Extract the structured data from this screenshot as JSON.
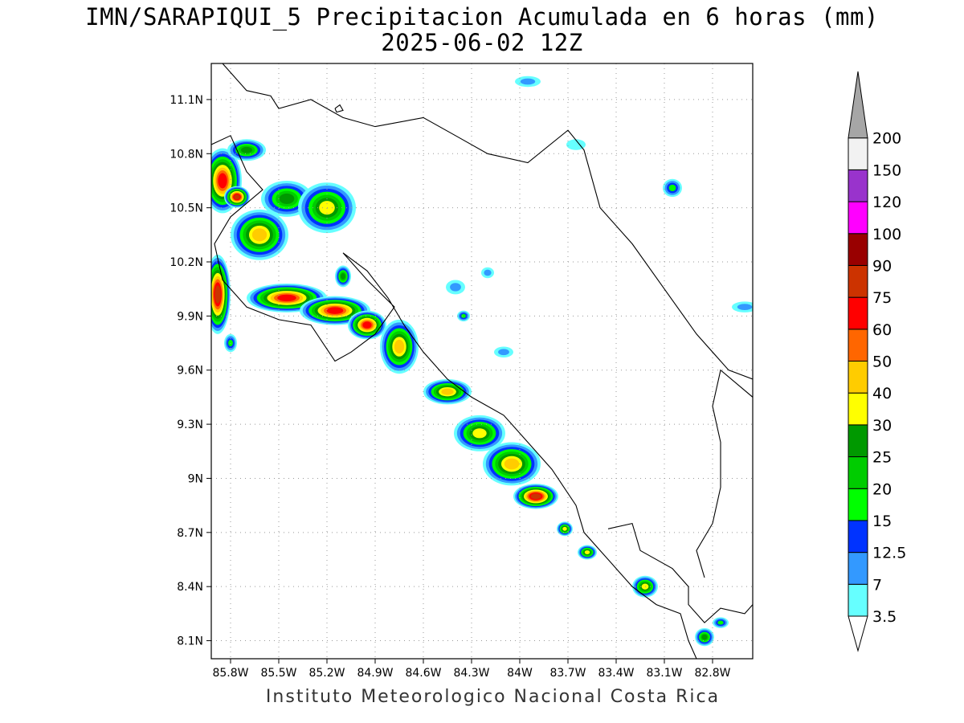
{
  "title": "IMN/SARAPIQUI_5 Precipitacion Acumulada en 6 horas (mm)",
  "subtitle": "2025-06-02 12Z",
  "footer": "Instituto Meteorologico Nacional Costa Rica",
  "map": {
    "lon_range": [
      -85.92,
      -82.55
    ],
    "lat_range": [
      8.0,
      11.3
    ],
    "lat_ticks": [
      {
        "value": 8.1,
        "label": "8.1N"
      },
      {
        "value": 8.4,
        "label": "8.4N"
      },
      {
        "value": 8.7,
        "label": "8.7N"
      },
      {
        "value": 9.0,
        "label": "9N"
      },
      {
        "value": 9.3,
        "label": "9.3N"
      },
      {
        "value": 9.6,
        "label": "9.6N"
      },
      {
        "value": 9.9,
        "label": "9.9N"
      },
      {
        "value": 10.2,
        "label": "10.2N"
      },
      {
        "value": 10.5,
        "label": "10.5N"
      },
      {
        "value": 10.8,
        "label": "10.8N"
      },
      {
        "value": 11.1,
        "label": "11.1N"
      }
    ],
    "lon_ticks": [
      {
        "value": -85.8,
        "label": "85.8W"
      },
      {
        "value": -85.5,
        "label": "85.5W"
      },
      {
        "value": -85.2,
        "label": "85.2W"
      },
      {
        "value": -84.9,
        "label": "84.9W"
      },
      {
        "value": -84.6,
        "label": "84.6W"
      },
      {
        "value": -84.3,
        "label": "84.3W"
      },
      {
        "value": -84.0,
        "label": "84W"
      },
      {
        "value": -83.7,
        "label": "83.7W"
      },
      {
        "value": -83.4,
        "label": "83.4W"
      },
      {
        "value": -83.1,
        "label": "83.1W"
      },
      {
        "value": -82.8,
        "label": "82.8W"
      }
    ],
    "coastline": [
      [
        [
          -85.85,
          11.3
        ],
        [
          -85.7,
          11.15
        ],
        [
          -85.55,
          11.12
        ],
        [
          -85.5,
          11.05
        ],
        [
          -85.3,
          11.1
        ],
        [
          -85.1,
          11.0
        ],
        [
          -84.9,
          10.95
        ],
        [
          -84.6,
          11.0
        ],
        [
          -84.4,
          10.9
        ],
        [
          -84.2,
          10.8
        ],
        [
          -83.95,
          10.75
        ],
        [
          -83.7,
          10.93
        ],
        [
          -83.6,
          10.82
        ],
        [
          -83.5,
          10.5
        ],
        [
          -83.3,
          10.3
        ],
        [
          -83.1,
          10.05
        ],
        [
          -82.9,
          9.8
        ],
        [
          -82.7,
          9.6
        ],
        [
          -82.55,
          9.55
        ]
      ],
      [
        [
          -85.92,
          10.85
        ],
        [
          -85.8,
          10.9
        ],
        [
          -85.7,
          10.7
        ],
        [
          -85.6,
          10.6
        ],
        [
          -85.8,
          10.45
        ],
        [
          -85.9,
          10.3
        ],
        [
          -85.85,
          10.1
        ],
        [
          -85.7,
          9.95
        ],
        [
          -85.5,
          9.88
        ],
        [
          -85.3,
          9.85
        ],
        [
          -85.15,
          9.65
        ],
        [
          -85.05,
          9.7
        ],
        [
          -84.9,
          9.8
        ],
        [
          -84.78,
          9.95
        ],
        [
          -84.95,
          10.1
        ],
        [
          -85.1,
          10.25
        ],
        [
          -84.95,
          10.15
        ],
        [
          -84.82,
          10.0
        ],
        [
          -84.72,
          9.85
        ],
        [
          -84.6,
          9.7
        ],
        [
          -84.45,
          9.55
        ],
        [
          -84.3,
          9.45
        ],
        [
          -84.1,
          9.35
        ],
        [
          -83.95,
          9.2
        ],
        [
          -83.8,
          9.05
        ],
        [
          -83.65,
          8.85
        ],
        [
          -83.6,
          8.7
        ],
        [
          -83.5,
          8.6
        ],
        [
          -83.4,
          8.5
        ],
        [
          -83.3,
          8.4
        ],
        [
          -83.15,
          8.3
        ],
        [
          -83.0,
          8.25
        ],
        [
          -82.95,
          8.1
        ],
        [
          -82.9,
          8.0
        ]
      ],
      [
        [
          -83.45,
          8.72
        ],
        [
          -83.3,
          8.75
        ],
        [
          -83.25,
          8.6
        ],
        [
          -83.05,
          8.5
        ],
        [
          -82.95,
          8.4
        ],
        [
          -82.95,
          8.3
        ],
        [
          -82.85,
          8.2
        ],
        [
          -82.75,
          8.28
        ],
        [
          -82.6,
          8.25
        ],
        [
          -82.55,
          8.3
        ]
      ],
      [
        [
          -82.55,
          9.45
        ],
        [
          -82.75,
          9.6
        ],
        [
          -82.8,
          9.4
        ],
        [
          -82.75,
          9.2
        ],
        [
          -82.75,
          8.95
        ],
        [
          -82.8,
          8.75
        ],
        [
          -82.9,
          8.6
        ],
        [
          -82.85,
          8.45
        ]
      ]
    ],
    "islands": [
      [
        [
          -85.15,
          11.05
        ],
        [
          -85.12,
          11.07
        ],
        [
          -85.1,
          11.04
        ],
        [
          -85.14,
          11.03
        ],
        [
          -85.15,
          11.05
        ]
      ]
    ],
    "precip_cells": [
      {
        "lon": -85.85,
        "lat": 10.65,
        "rx": 0.12,
        "ry": 0.18,
        "peak": 60
      },
      {
        "lon": -85.76,
        "lat": 10.56,
        "rx": 0.08,
        "ry": 0.06,
        "peak": 75
      },
      {
        "lon": -85.7,
        "lat": 10.82,
        "rx": 0.12,
        "ry": 0.06,
        "peak": 25
      },
      {
        "lon": -85.62,
        "lat": 10.35,
        "rx": 0.18,
        "ry": 0.14,
        "peak": 40
      },
      {
        "lon": -85.45,
        "lat": 10.55,
        "rx": 0.16,
        "ry": 0.1,
        "peak": 25
      },
      {
        "lon": -85.2,
        "lat": 10.5,
        "rx": 0.18,
        "ry": 0.14,
        "peak": 35
      },
      {
        "lon": -85.88,
        "lat": 10.02,
        "rx": 0.08,
        "ry": 0.22,
        "peak": 75
      },
      {
        "lon": -85.45,
        "lat": 10.0,
        "rx": 0.25,
        "ry": 0.08,
        "peak": 60
      },
      {
        "lon": -85.15,
        "lat": 9.93,
        "rx": 0.22,
        "ry": 0.08,
        "peak": 60
      },
      {
        "lon": -84.95,
        "lat": 9.85,
        "rx": 0.12,
        "ry": 0.08,
        "peak": 60
      },
      {
        "lon": -85.1,
        "lat": 10.12,
        "rx": 0.05,
        "ry": 0.06,
        "peak": 25
      },
      {
        "lon": -84.75,
        "lat": 9.73,
        "rx": 0.12,
        "ry": 0.15,
        "peak": 40
      },
      {
        "lon": -84.45,
        "lat": 9.48,
        "rx": 0.15,
        "ry": 0.07,
        "peak": 40
      },
      {
        "lon": -84.25,
        "lat": 9.25,
        "rx": 0.16,
        "ry": 0.1,
        "peak": 30
      },
      {
        "lon": -84.05,
        "lat": 9.08,
        "rx": 0.18,
        "ry": 0.12,
        "peak": 40
      },
      {
        "lon": -83.9,
        "lat": 8.9,
        "rx": 0.14,
        "ry": 0.07,
        "peak": 75
      },
      {
        "lon": -83.72,
        "lat": 8.72,
        "rx": 0.05,
        "ry": 0.04,
        "peak": 30
      },
      {
        "lon": -83.58,
        "lat": 8.59,
        "rx": 0.06,
        "ry": 0.04,
        "peak": 30
      },
      {
        "lon": -83.22,
        "lat": 8.4,
        "rx": 0.08,
        "ry": 0.06,
        "peak": 30
      },
      {
        "lon": -82.85,
        "lat": 8.12,
        "rx": 0.06,
        "ry": 0.05,
        "peak": 25
      },
      {
        "lon": -83.05,
        "lat": 10.61,
        "rx": 0.06,
        "ry": 0.05,
        "peak": 15
      },
      {
        "lon": -82.75,
        "lat": 8.2,
        "rx": 0.05,
        "ry": 0.03,
        "peak": 15
      },
      {
        "lon": -82.6,
        "lat": 9.95,
        "rx": 0.08,
        "ry": 0.03,
        "peak": 7
      },
      {
        "lon": -84.35,
        "lat": 9.9,
        "rx": 0.04,
        "ry": 0.03,
        "peak": 15
      },
      {
        "lon": -85.8,
        "lat": 9.75,
        "rx": 0.04,
        "ry": 0.05,
        "peak": 15
      },
      {
        "lon": -84.2,
        "lat": 10.14,
        "rx": 0.04,
        "ry": 0.03,
        "peak": 7
      },
      {
        "lon": -84.4,
        "lat": 10.06,
        "rx": 0.06,
        "ry": 0.04,
        "peak": 7
      },
      {
        "lon": -83.65,
        "lat": 10.85,
        "rx": 0.06,
        "ry": 0.03,
        "peak": 3.5
      },
      {
        "lon": -84.1,
        "lat": 9.7,
        "rx": 0.06,
        "ry": 0.03,
        "peak": 7
      },
      {
        "lon": -83.95,
        "lat": 11.2,
        "rx": 0.08,
        "ry": 0.03,
        "peak": 7
      }
    ]
  },
  "colorbar": {
    "levels": [
      "3.5",
      "7",
      "12.5",
      "15",
      "20",
      "25",
      "30",
      "40",
      "50",
      "60",
      "75",
      "90",
      "100",
      "120",
      "150",
      "200"
    ],
    "colors": [
      "#66ffff",
      "#3399ff",
      "#0033ff",
      "#00ff00",
      "#00cc00",
      "#009900",
      "#ffff00",
      "#ffcc00",
      "#ff6600",
      "#ff0000",
      "#cc3300",
      "#990000",
      "#ff00ff",
      "#9933cc",
      "#f2f2f2",
      "#a6a6a6"
    ]
  }
}
